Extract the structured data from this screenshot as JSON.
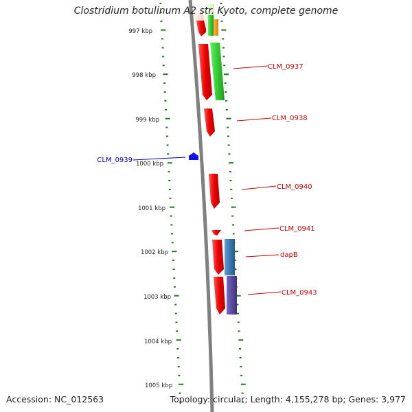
{
  "title": "Clostridium botulinum A2 str. Kyoto, complete genome",
  "accession": "Accession: NC_012563",
  "topology": "Topology: circular; Length: 4,155,278 bp; Genes: 3,977",
  "scale_labels": [
    "997 kbp",
    "998 kbp",
    "999 kbp",
    "1000 kbp",
    "1001 kbp",
    "1002 kbp",
    "1003 kbp",
    "1004 kbp",
    "1005 kbp"
  ],
  "gene_labels": [
    {
      "text": "CLM_0937",
      "color": "#cc0000"
    },
    {
      "text": "CLM_0938",
      "color": "#cc0000"
    },
    {
      "text": "CLM_0939",
      "color": "#0000aa"
    },
    {
      "text": "CLM_0940",
      "color": "#cc0000"
    },
    {
      "text": "CLM_0941",
      "color": "#cc0000"
    },
    {
      "text": "dapB",
      "color": "#cc0000"
    },
    {
      "text": "CLM_0943",
      "color": "#cc0000"
    }
  ],
  "colors": {
    "backbone": "#808080",
    "tick": "#1a7a1a",
    "cds_reverse": "#ee1111",
    "cds_forward": "#1010ee",
    "cog_green": "#33cc33",
    "cog_orange": "#ff9900",
    "cog_blue": "#3a7ab5",
    "cog_purple": "#5a4aa0",
    "cog_pale": "#fde3d8"
  }
}
